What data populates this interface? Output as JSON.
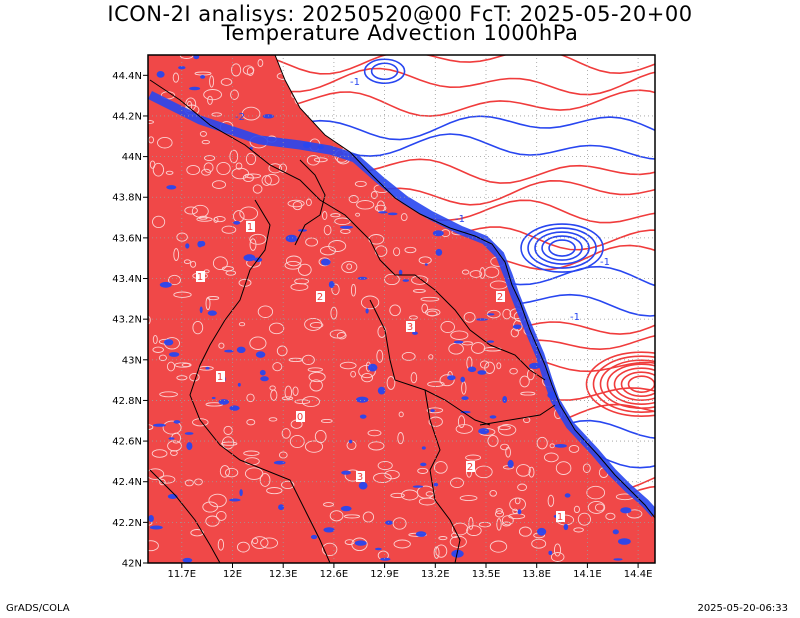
{
  "header": {
    "line1": "ICON-2I analisys: 20250520@00 FcT: 2025-05-20+00",
    "line2": "Temperature Advection 1000hPa"
  },
  "footer": {
    "left": "GrADS/COLA",
    "right": "2025-05-20-06:33"
  },
  "map": {
    "lat_labels": [
      "42N",
      "42.2N",
      "42.4N",
      "42.6N",
      "42.8N",
      "43N",
      "43.2N",
      "43.4N",
      "43.6N",
      "43.8N",
      "44N",
      "44.2N",
      "44.4N"
    ],
    "lon_labels": [
      "11.7E",
      "12E",
      "12.3E",
      "12.6E",
      "12.9E",
      "13.2E",
      "13.5E",
      "13.8E",
      "14.1E",
      "14.4E"
    ],
    "lat_range": [
      42.0,
      44.5
    ],
    "lon_range": [
      11.5,
      14.5
    ],
    "colors": {
      "warm_advection": "#f03c3c",
      "cold_advection": "#2846f0",
      "border": "#000000",
      "grid": "#9a9a9a"
    },
    "contour_labels": {
      "warm": [
        "1",
        "2",
        "3",
        "0",
        "1",
        "2",
        "1",
        "3",
        "2",
        "1"
      ],
      "cold": [
        "-1",
        "-1",
        "-2",
        "-1",
        "-1"
      ]
    }
  }
}
